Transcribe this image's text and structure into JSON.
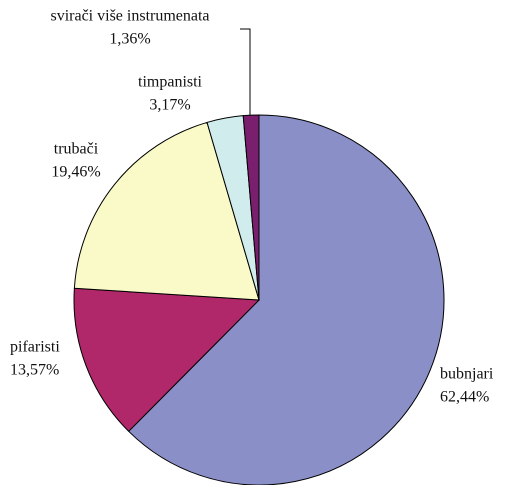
{
  "chart_data": {
    "type": "pie",
    "categories": [
      "bubnjari",
      "pifaristi",
      "trubači",
      "timpanisti",
      "svirači više instrumenata"
    ],
    "values": [
      62.44,
      13.57,
      19.46,
      3.17,
      1.36
    ],
    "value_labels": [
      "62,44%",
      "13,57%",
      "19,46%",
      "3,17%",
      "1,36%"
    ],
    "colors": [
      "#8b8fc7",
      "#b0286a",
      "#fafac8",
      "#d0ecec",
      "#7a1f6e"
    ]
  }
}
